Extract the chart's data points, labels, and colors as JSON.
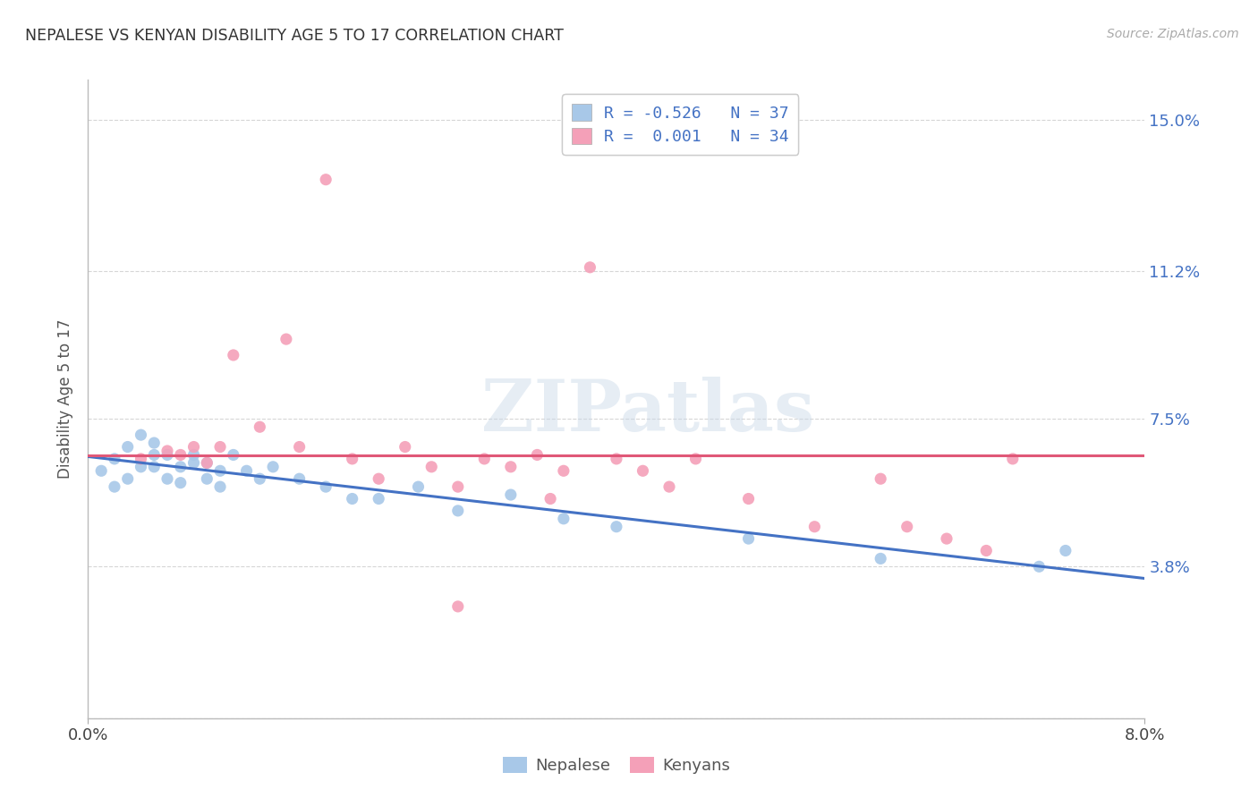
{
  "title": "NEPALESE VS KENYAN DISABILITY AGE 5 TO 17 CORRELATION CHART",
  "source": "Source: ZipAtlas.com",
  "ylabel": "Disability Age 5 to 17",
  "xlim": [
    0.0,
    0.08
  ],
  "ylim": [
    0.0,
    0.16
  ],
  "ytick_vals": [
    0.0,
    0.038,
    0.075,
    0.112,
    0.15
  ],
  "ytick_labels": [
    "",
    "3.8%",
    "7.5%",
    "11.2%",
    "15.0%"
  ],
  "xtick_vals": [
    0.0,
    0.08
  ],
  "xtick_labels": [
    "0.0%",
    "8.0%"
  ],
  "grid_color": "#cccccc",
  "background_color": "#ffffff",
  "nepalese_color": "#a8c8e8",
  "kenyan_color": "#f4a0b8",
  "nepalese_line_color": "#4472c4",
  "kenyan_line_color": "#e05878",
  "nepalese_line_slope": -0.526,
  "kenyan_line_slope": 0.001,
  "watermark_text": "ZIPatlas",
  "marker_size": 90,
  "nepalese_x": [
    0.001,
    0.002,
    0.002,
    0.003,
    0.003,
    0.004,
    0.004,
    0.005,
    0.005,
    0.005,
    0.006,
    0.006,
    0.007,
    0.007,
    0.008,
    0.008,
    0.009,
    0.009,
    0.01,
    0.01,
    0.011,
    0.012,
    0.013,
    0.014,
    0.016,
    0.018,
    0.02,
    0.022,
    0.025,
    0.028,
    0.032,
    0.036,
    0.04,
    0.05,
    0.06,
    0.072,
    0.074
  ],
  "nepalese_y": [
    0.062,
    0.058,
    0.065,
    0.06,
    0.068,
    0.063,
    0.071,
    0.066,
    0.063,
    0.069,
    0.066,
    0.06,
    0.063,
    0.059,
    0.064,
    0.066,
    0.06,
    0.064,
    0.062,
    0.058,
    0.066,
    0.062,
    0.06,
    0.063,
    0.06,
    0.058,
    0.055,
    0.055,
    0.058,
    0.052,
    0.056,
    0.05,
    0.048,
    0.045,
    0.04,
    0.038,
    0.042
  ],
  "kenyan_x": [
    0.004,
    0.006,
    0.007,
    0.008,
    0.009,
    0.01,
    0.011,
    0.013,
    0.015,
    0.016,
    0.018,
    0.02,
    0.022,
    0.024,
    0.026,
    0.028,
    0.03,
    0.032,
    0.034,
    0.036,
    0.038,
    0.04,
    0.042,
    0.044,
    0.046,
    0.05,
    0.055,
    0.06,
    0.062,
    0.065,
    0.068,
    0.07,
    0.035,
    0.028
  ],
  "kenyan_y": [
    0.065,
    0.067,
    0.066,
    0.068,
    0.064,
    0.068,
    0.091,
    0.073,
    0.095,
    0.068,
    0.135,
    0.065,
    0.06,
    0.068,
    0.063,
    0.058,
    0.065,
    0.063,
    0.066,
    0.062,
    0.113,
    0.065,
    0.062,
    0.058,
    0.065,
    0.055,
    0.048,
    0.06,
    0.048,
    0.045,
    0.042,
    0.065,
    0.055,
    0.028
  ],
  "legend_entries": [
    {
      "label": "R = -0.526   N = 37",
      "color": "#a8c8e8"
    },
    {
      "label": "R =  0.001   N = 34",
      "color": "#f4a0b8"
    }
  ],
  "bottom_legend": [
    "Nepalese",
    "Kenyans"
  ]
}
